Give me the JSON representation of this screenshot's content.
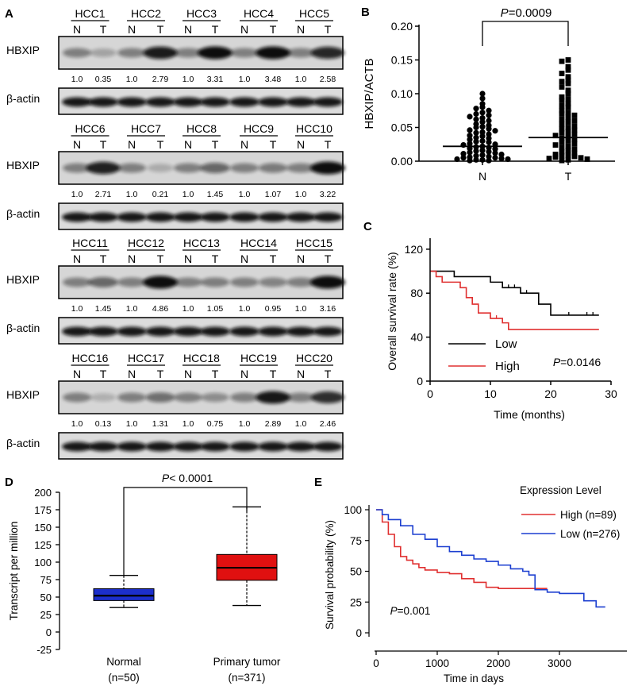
{
  "panel_labels": {
    "a": "A",
    "b": "B",
    "c": "C",
    "d": "D",
    "e": "E"
  },
  "blots": {
    "row_hbxip": "HBXIP",
    "row_actin": "β-actin",
    "lane_n": "N",
    "lane_t": "T",
    "blocks": [
      {
        "samples": [
          "HCC1",
          "HCC2",
          "HCC3",
          "HCC4",
          "HCC5"
        ],
        "ratios": [
          "1.0",
          "0.35",
          "1.0",
          "2.79",
          "1.0",
          "3.31",
          "1.0",
          "3.48",
          "1.0",
          "2.58"
        ],
        "ratio_values": [
          1.0,
          0.35,
          1.0,
          2.79,
          1.0,
          3.31,
          1.0,
          3.48,
          1.0,
          2.58
        ]
      },
      {
        "samples": [
          "HCC6",
          "HCC7",
          "HCC8",
          "HCC9",
          "HCC10"
        ],
        "ratios": [
          "1.0",
          "2.71",
          "1.0",
          "0.21",
          "1.0",
          "1.45",
          "1.0",
          "1.07",
          "1.0",
          "3.22"
        ],
        "ratio_values": [
          1.0,
          2.71,
          1.0,
          0.21,
          1.0,
          1.45,
          1.0,
          1.07,
          1.0,
          3.22
        ]
      },
      {
        "samples": [
          "HCC11",
          "HCC12",
          "HCC13",
          "HCC14",
          "HCC15"
        ],
        "ratios": [
          "1.0",
          "1.45",
          "1.0",
          "4.86",
          "1.0",
          "1.05",
          "1.0",
          "0.95",
          "1.0",
          "3.16"
        ],
        "ratio_values": [
          1.0,
          1.45,
          1.0,
          4.86,
          1.0,
          1.05,
          1.0,
          0.95,
          1.0,
          3.16
        ]
      },
      {
        "samples": [
          "HCC16",
          "HCC17",
          "HCC18",
          "HCC19",
          "HCC20"
        ],
        "ratios": [
          "1.0",
          "0.13",
          "1.0",
          "1.31",
          "1.0",
          "0.75",
          "1.0",
          "2.89",
          "1.0",
          "2.46"
        ],
        "ratio_values": [
          1.0,
          0.13,
          1.0,
          1.31,
          1.0,
          0.75,
          1.0,
          2.89,
          1.0,
          2.46
        ]
      }
    ]
  },
  "chart_data": [
    {
      "id": "B",
      "type": "scatter",
      "title": "",
      "ylabel": "HBXIP/ACTB",
      "xlabel": "",
      "categories": [
        "N",
        "T"
      ],
      "ylim": [
        0,
        0.2
      ],
      "yticks": [
        "0.00",
        "0.05",
        "0.10",
        "0.15",
        "0.20"
      ],
      "ytick_values": [
        0,
        0.05,
        0.1,
        0.15,
        0.2
      ],
      "pvalue": "=0.0009",
      "p_letter": "P",
      "medians": [
        0.022,
        0.035
      ],
      "series": [
        {
          "name": "N",
          "marker": "circle",
          "values": [
            0.1,
            0.093,
            0.085,
            0.08,
            0.078,
            0.075,
            0.072,
            0.07,
            0.068,
            0.066,
            0.064,
            0.062,
            0.06,
            0.058,
            0.055,
            0.053,
            0.051,
            0.05,
            0.048,
            0.046,
            0.045,
            0.043,
            0.042,
            0.04,
            0.038,
            0.037,
            0.035,
            0.034,
            0.032,
            0.03,
            0.029,
            0.028,
            0.026,
            0.025,
            0.024,
            0.022,
            0.021,
            0.02,
            0.019,
            0.018,
            0.016,
            0.015,
            0.014,
            0.013,
            0.012,
            0.011,
            0.01,
            0.009,
            0.008,
            0.007,
            0.006,
            0.005,
            0.005,
            0.004,
            0.003,
            0.003,
            0.002,
            0.002,
            0.001,
            0.001
          ]
        },
        {
          "name": "T",
          "marker": "square",
          "values": [
            0.15,
            0.148,
            0.14,
            0.135,
            0.13,
            0.125,
            0.12,
            0.118,
            0.115,
            0.11,
            0.105,
            0.1,
            0.095,
            0.092,
            0.09,
            0.085,
            0.082,
            0.08,
            0.075,
            0.072,
            0.07,
            0.068,
            0.065,
            0.062,
            0.06,
            0.058,
            0.055,
            0.052,
            0.05,
            0.048,
            0.046,
            0.044,
            0.042,
            0.04,
            0.038,
            0.036,
            0.034,
            0.032,
            0.03,
            0.028,
            0.026,
            0.024,
            0.022,
            0.02,
            0.018,
            0.016,
            0.014,
            0.012,
            0.01,
            0.009,
            0.008,
            0.007,
            0.006,
            0.005,
            0.004,
            0.003,
            0.002,
            0.001
          ]
        }
      ]
    },
    {
      "id": "C",
      "type": "line",
      "title": "",
      "xlabel": "Time (months)",
      "ylabel": "Overall survival rate (%)",
      "xlim": [
        0,
        30
      ],
      "ylim": [
        0,
        130
      ],
      "xticks": [
        "0",
        "10",
        "20",
        "30"
      ],
      "xtick_values": [
        0,
        10,
        20,
        30
      ],
      "yticks": [
        "0",
        "40",
        "80",
        "120"
      ],
      "ytick_values": [
        0,
        40,
        80,
        120
      ],
      "pvalue": "=0.0146",
      "p_letter": "P",
      "legend": [
        "Low",
        "High"
      ],
      "series": [
        {
          "name": "Low",
          "color": "#000000",
          "x": [
            0,
            4,
            10,
            12,
            15,
            18,
            20,
            28
          ],
          "y": [
            100,
            95,
            90,
            85,
            80,
            70,
            60,
            60
          ],
          "censor_x": [
            13,
            14,
            15,
            16,
            23,
            26,
            27
          ]
        },
        {
          "name": "High",
          "color": "#e03030",
          "x": [
            0,
            1,
            2,
            5,
            6,
            7,
            8,
            10,
            12,
            13,
            28
          ],
          "y": [
            100,
            95,
            90,
            85,
            76,
            70,
            62,
            57,
            53,
            47,
            47
          ],
          "censor_x": [
            10,
            11,
            12
          ]
        }
      ]
    },
    {
      "id": "D",
      "type": "box",
      "title": "",
      "ylabel": "Transcript per million",
      "categories": [
        "Normal",
        "Primary tumor"
      ],
      "n_labels": [
        "(n=50)",
        "(n=371)"
      ],
      "ylim": [
        -25,
        200
      ],
      "yticks": [
        "-25",
        "0",
        "25",
        "50",
        "75",
        "100",
        "125",
        "150",
        "175",
        "200"
      ],
      "ytick_values": [
        -25,
        0,
        25,
        50,
        75,
        100,
        125,
        150,
        175,
        200
      ],
      "pvalue": "< 0.0001",
      "p_letter": "P",
      "boxes": [
        {
          "name": "Normal",
          "color": "#1c2fcc",
          "min": 35,
          "q1": 45,
          "median": 52,
          "q3": 62,
          "max": 81
        },
        {
          "name": "Primary tumor",
          "color": "#e01010",
          "min": 38,
          "q1": 74,
          "median": 92,
          "q3": 111,
          "max": 179
        }
      ]
    },
    {
      "id": "E",
      "type": "line",
      "title": "",
      "xlabel": "Time in days",
      "ylabel": "Survival probability (%)",
      "xlim": [
        0,
        4000
      ],
      "ylim": [
        0,
        100
      ],
      "xticks": [
        "0",
        "1000",
        "2000",
        "3000"
      ],
      "xtick_values": [
        0,
        1000,
        2000,
        3000
      ],
      "yticks": [
        "0",
        "25",
        "50",
        "75",
        "100"
      ],
      "ytick_values": [
        0,
        25,
        50,
        75,
        100
      ],
      "pvalue": "=0.001",
      "p_letter": "P",
      "legend_title": "Expression Level",
      "legend": [
        "High (n=89)",
        "Low (n=276)"
      ],
      "series": [
        {
          "name": "High (n=89)",
          "color": "#e03030",
          "x": [
            0,
            100,
            200,
            300,
            400,
            500,
            600,
            700,
            800,
            1000,
            1200,
            1400,
            1600,
            1800,
            2000,
            2200,
            2400,
            2600,
            2800
          ],
          "y": [
            100,
            90,
            80,
            70,
            62,
            59,
            56,
            53,
            51,
            49,
            48,
            44,
            41,
            37,
            36,
            36,
            36,
            36,
            36
          ]
        },
        {
          "name": "Low (n=276)",
          "color": "#1c3fd0",
          "x": [
            0,
            100,
            200,
            400,
            600,
            800,
            1000,
            1200,
            1400,
            1600,
            1800,
            2000,
            2200,
            2400,
            2500,
            2600,
            2800,
            3000,
            3200,
            3400,
            3600,
            3750
          ],
          "y": [
            100,
            96,
            92,
            87,
            80,
            76,
            70,
            66,
            63,
            60,
            58,
            55,
            52,
            50,
            47,
            35,
            33,
            32,
            32,
            26,
            21,
            21
          ]
        }
      ]
    }
  ]
}
